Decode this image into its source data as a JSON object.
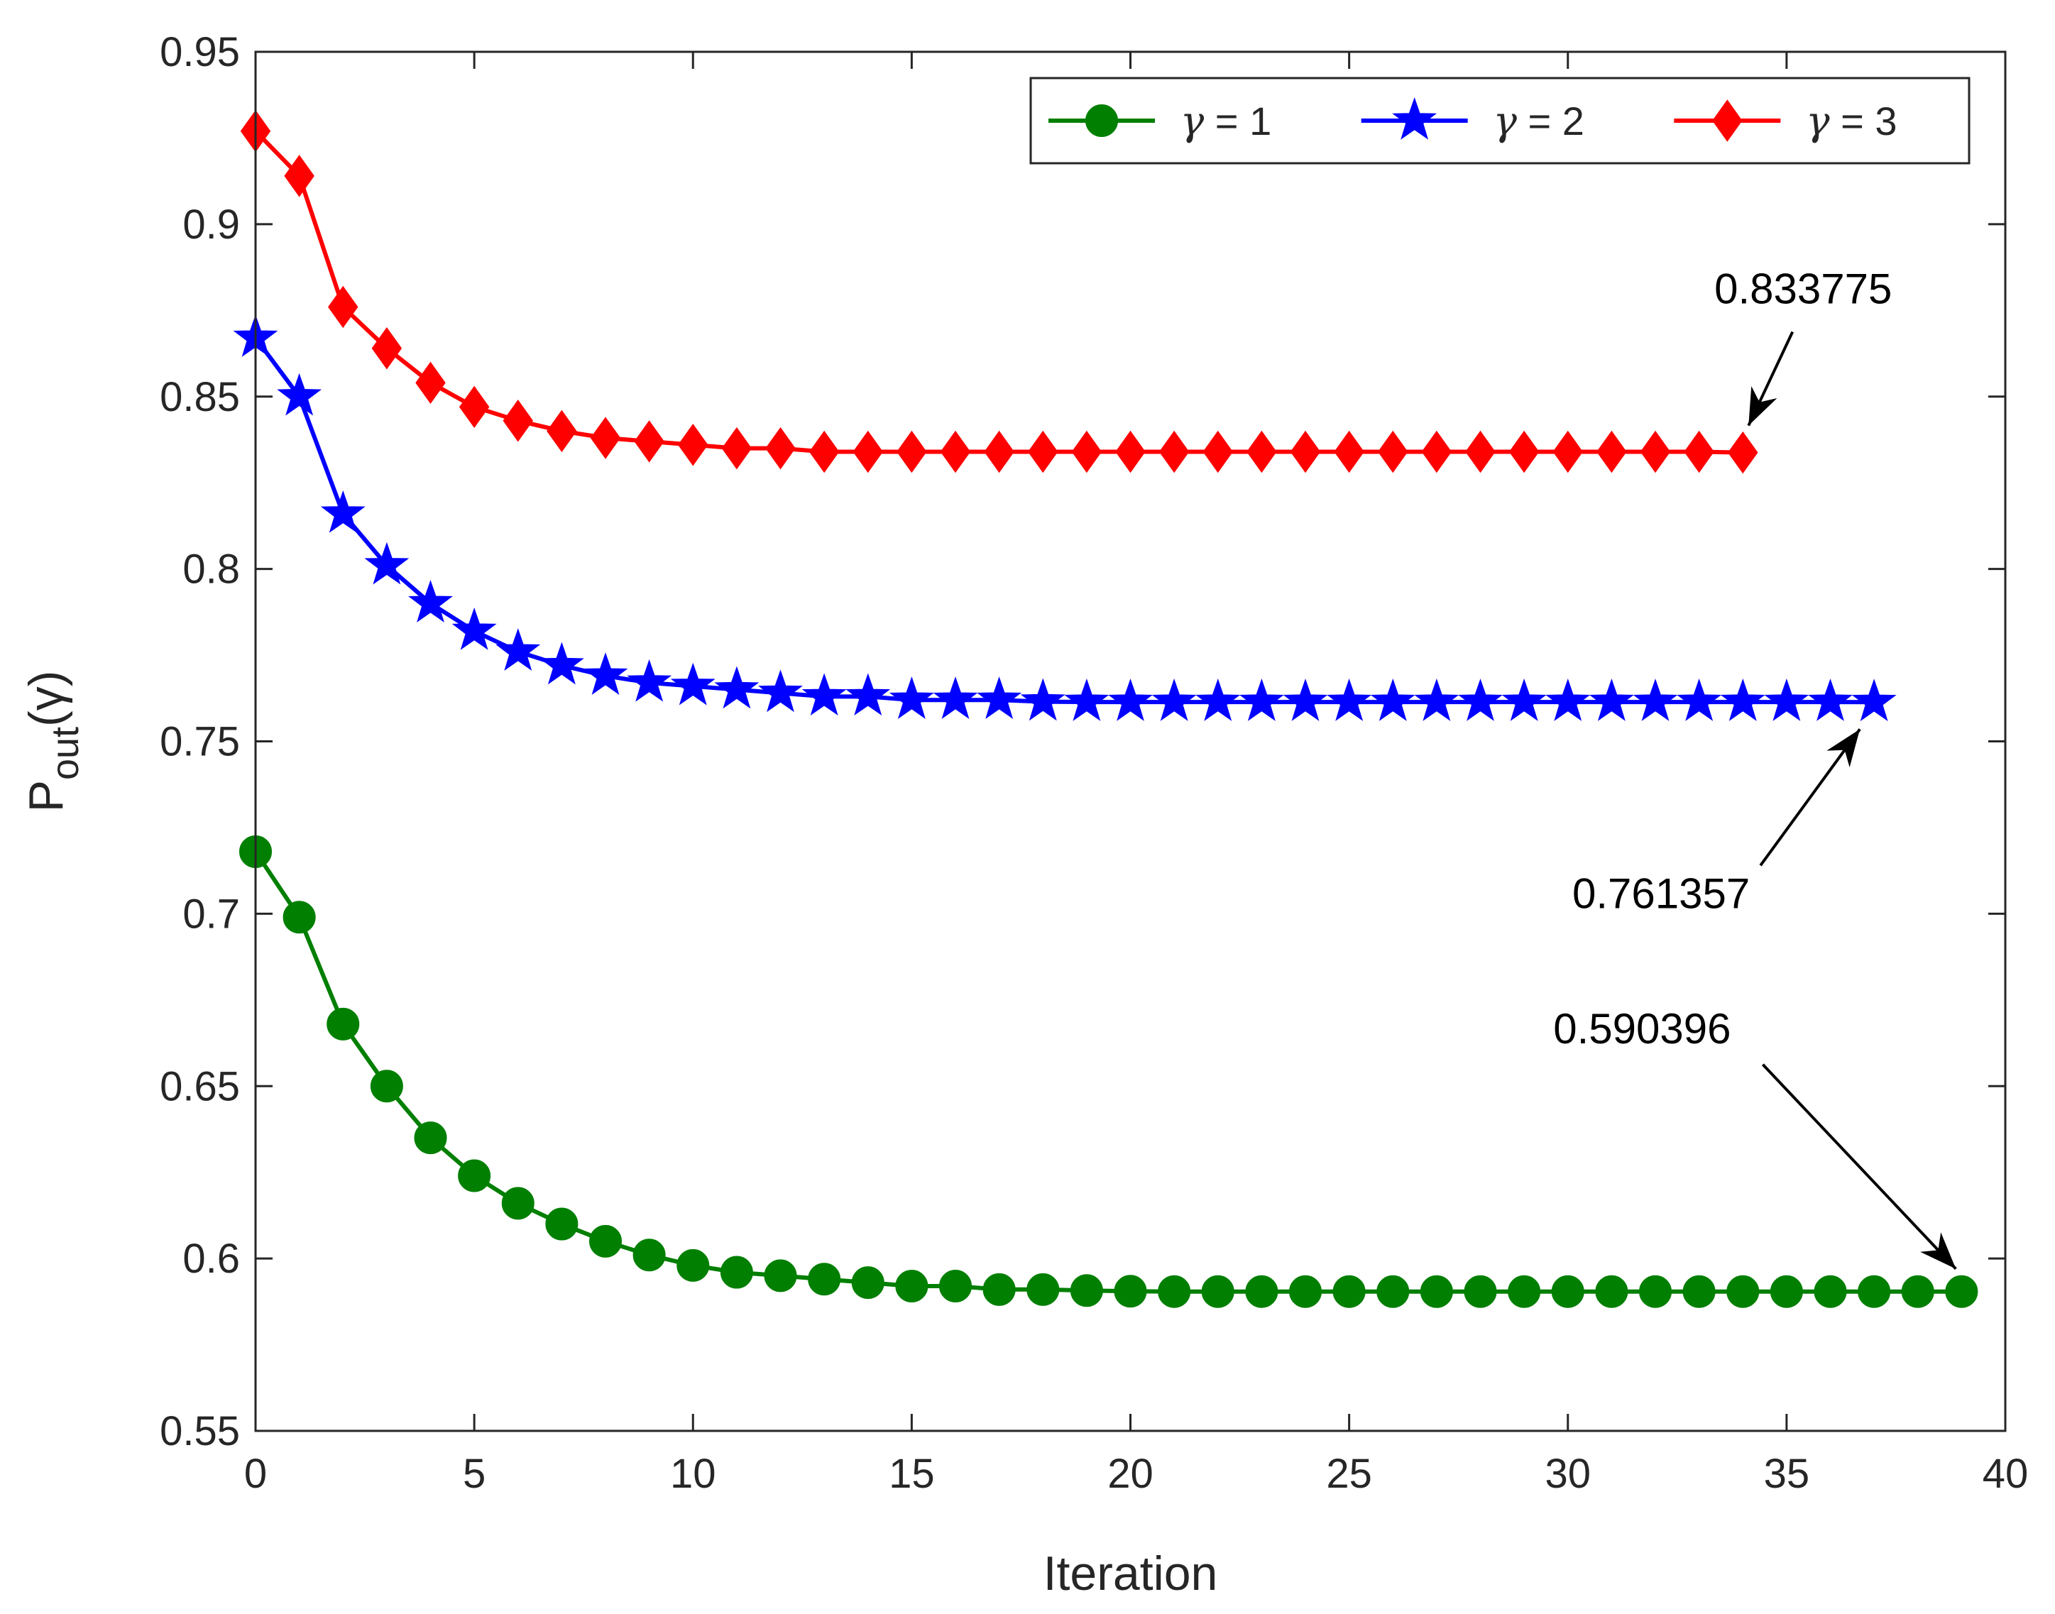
{
  "chart_data": {
    "type": "line",
    "title": "",
    "xlabel": "Iteration",
    "ylabel": "P",
    "ylabel_subscript": "out",
    "ylabel_suffix": "(γ)",
    "xlim": [
      0,
      40
    ],
    "ylim": [
      0.55,
      0.95
    ],
    "grid": false,
    "legend_position": "top-right",
    "xticks": [
      0,
      5,
      10,
      15,
      20,
      25,
      30,
      35,
      40
    ],
    "xtick_labels": [
      "0",
      "5",
      "10",
      "15",
      "20",
      "25",
      "30",
      "35",
      "40"
    ],
    "yticks": [
      0.55,
      0.6,
      0.65,
      0.7,
      0.75,
      0.8,
      0.85,
      0.9,
      0.95
    ],
    "ytick_labels": [
      "0.55",
      "0.6",
      "0.65",
      "0.7",
      "0.75",
      "0.8",
      "0.85",
      "0.9",
      "0.95"
    ],
    "series": [
      {
        "name": "γ = 1",
        "legend_symbol": "γ",
        "legend_rest": " = 1",
        "color": "#007f00",
        "marker": "circle",
        "x": [
          0,
          1,
          2,
          3,
          4,
          5,
          6,
          7,
          8,
          9,
          10,
          11,
          12,
          13,
          14,
          15,
          16,
          17,
          18,
          19,
          20,
          21,
          22,
          23,
          24,
          25,
          26,
          27,
          28,
          29,
          30,
          31,
          32,
          33,
          34,
          35,
          36,
          37,
          38,
          39
        ],
        "values": [
          0.718,
          0.699,
          0.668,
          0.65,
          0.635,
          0.624,
          0.616,
          0.61,
          0.605,
          0.601,
          0.598,
          0.596,
          0.595,
          0.594,
          0.593,
          0.592,
          0.592,
          0.591,
          0.591,
          0.5907,
          0.5905,
          0.5904,
          0.5904,
          0.5904,
          0.5904,
          0.5904,
          0.5904,
          0.5904,
          0.5904,
          0.5904,
          0.5904,
          0.5904,
          0.5904,
          0.5904,
          0.5904,
          0.5904,
          0.5904,
          0.5904,
          0.5904,
          0.590396
        ]
      },
      {
        "name": "γ = 2",
        "legend_symbol": "γ",
        "legend_rest": " = 2",
        "color": "#0000ff",
        "marker": "star",
        "x": [
          0,
          1,
          2,
          3,
          4,
          5,
          6,
          7,
          8,
          9,
          10,
          11,
          12,
          13,
          14,
          15,
          16,
          17,
          18,
          19,
          20,
          21,
          22,
          23,
          24,
          25,
          26,
          27,
          28,
          29,
          30,
          31,
          32,
          33,
          34,
          35,
          36,
          37
        ],
        "values": [
          0.867,
          0.85,
          0.816,
          0.801,
          0.79,
          0.782,
          0.776,
          0.772,
          0.769,
          0.767,
          0.766,
          0.765,
          0.764,
          0.763,
          0.763,
          0.762,
          0.762,
          0.762,
          0.7615,
          0.7614,
          0.7614,
          0.7614,
          0.7614,
          0.7614,
          0.7614,
          0.7614,
          0.7614,
          0.7614,
          0.7614,
          0.7614,
          0.7614,
          0.7614,
          0.7614,
          0.7614,
          0.7614,
          0.7614,
          0.7614,
          0.761357
        ]
      },
      {
        "name": "γ = 3",
        "legend_symbol": "γ",
        "legend_rest": " = 3",
        "color": "#ff0000",
        "marker": "diamond",
        "x": [
          0,
          1,
          2,
          3,
          4,
          5,
          6,
          7,
          8,
          9,
          10,
          11,
          12,
          13,
          14,
          15,
          16,
          17,
          18,
          19,
          20,
          21,
          22,
          23,
          24,
          25,
          26,
          27,
          28,
          29,
          30,
          31,
          32,
          33,
          34
        ],
        "values": [
          0.927,
          0.914,
          0.876,
          0.864,
          0.854,
          0.847,
          0.843,
          0.84,
          0.838,
          0.837,
          0.836,
          0.835,
          0.835,
          0.834,
          0.834,
          0.834,
          0.834,
          0.834,
          0.834,
          0.834,
          0.834,
          0.834,
          0.834,
          0.834,
          0.834,
          0.834,
          0.834,
          0.834,
          0.834,
          0.834,
          0.834,
          0.834,
          0.834,
          0.834,
          0.833775
        ]
      }
    ],
    "annotations": [
      {
        "text": "0.833775",
        "point_x": 34,
        "point_y": 0.833775,
        "anchor": "above-right"
      },
      {
        "text": "0.761357",
        "point_x": 37,
        "point_y": 0.761357,
        "anchor": "below-left"
      },
      {
        "text": "0.590396",
        "point_x": 39,
        "point_y": 0.590396,
        "anchor": "above-left"
      }
    ]
  }
}
